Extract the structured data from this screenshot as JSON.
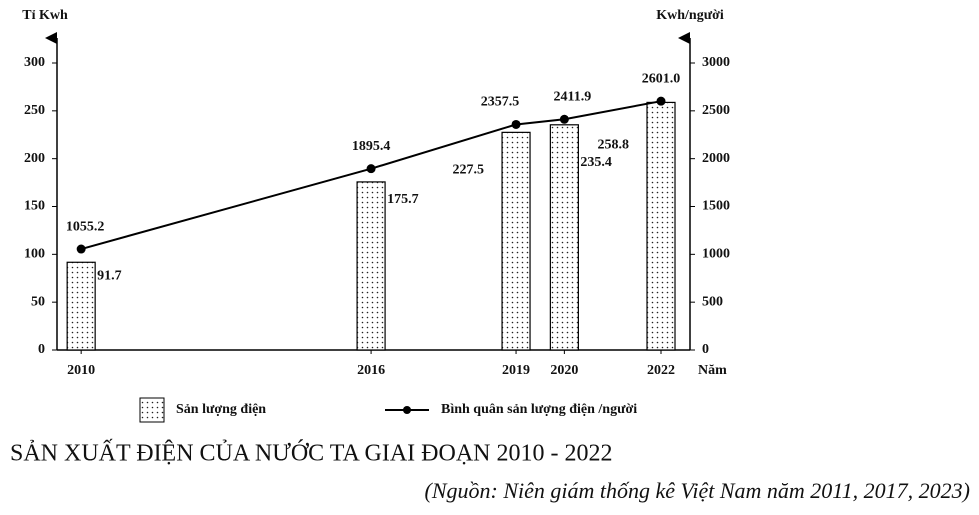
{
  "chart_data": {
    "type": "bar-line",
    "title": "SẢN XUẤT ĐIỆN CỦA NƯỚC TA GIAI ĐOẠN 2010 - 2022",
    "source": "(Nguồn: Niên giám thống kê Việt Nam năm 2011, 2017, 2023)",
    "y_label": "Tỉ Kwh",
    "y2_label": "Kwh/người",
    "x_label": "Năm",
    "x": [
      2010,
      2016,
      2019,
      2020,
      2022
    ],
    "xlim": [
      2009.5,
      2022.6
    ],
    "xticks": [
      2010,
      2016,
      2019,
      2020,
      2022
    ],
    "ylim": [
      0,
      300
    ],
    "yticks": [
      0,
      50,
      100,
      150,
      200,
      250,
      300
    ],
    "y2lim": [
      0,
      3000
    ],
    "y2ticks": [
      0,
      500,
      1000,
      1500,
      2000,
      2500,
      3000
    ],
    "series": [
      {
        "name": "Sản lượng điện",
        "type": "bar",
        "color": "#000000",
        "values": [
          91.7,
          175.7,
          227.5,
          235.4,
          258.8
        ]
      },
      {
        "name": "Bình quân sản lượng điện /người",
        "type": "line",
        "axis": "y2",
        "color": "#000000",
        "values": [
          1055.2,
          1895.4,
          2357.5,
          2411.9,
          2601.0
        ],
        "value_labels": [
          "1055.2",
          "1895.4",
          "2357.5",
          "2411.9",
          "2601.0"
        ]
      }
    ]
  }
}
